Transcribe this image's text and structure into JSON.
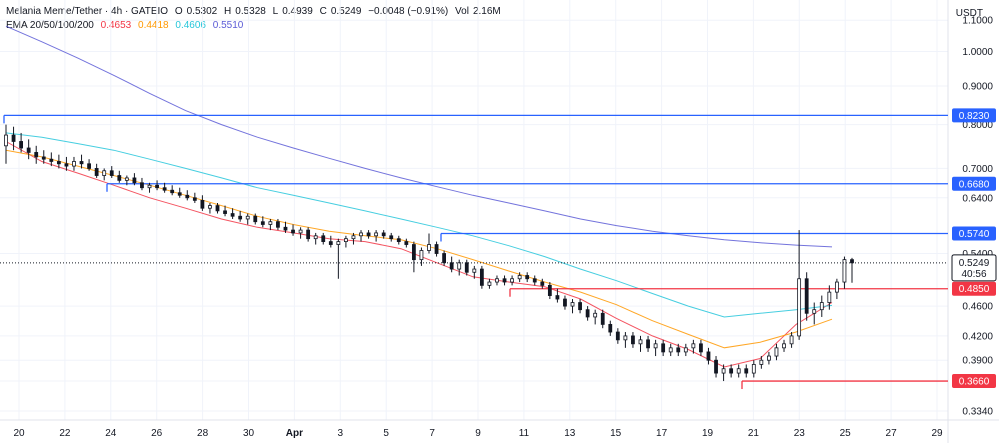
{
  "header": {
    "pair": "Melania Meme/Tether · 4h · GATEIO",
    "o_label": "O",
    "o_val": "0.5302",
    "h_label": "H",
    "h_val": "0.5328",
    "l_label": "L",
    "l_val": "0.4939",
    "c_label": "C",
    "c_val": "0.5249",
    "change": "−0.0048 (−0.91%)",
    "vol_label": "Vol",
    "vol_val": "2.16M",
    "ema_label": "EMA 20/50/100/200",
    "ema_values": [
      "0.4653",
      "0.4418",
      "0.4606",
      "0.5510"
    ],
    "currency": "USDT"
  },
  "colors": {
    "up": "#131722",
    "down": "#131722",
    "ema20": "#f23645",
    "ema50": "#ff9800",
    "ema100": "#26c6da",
    "ema200": "#5b5bd6",
    "resistance": "#2962ff",
    "support": "#f23645",
    "last_price_bg": "#ffffff"
  },
  "chart_data": {
    "type": "candlestick",
    "title": "Melania Meme/Tether · 4h · GATEIO",
    "ylabel": "USDT",
    "y_scale": "log",
    "ylim": [
      0.325,
      1.17
    ],
    "y_ticks": [
      "1.1000",
      "1.0000",
      "0.9000",
      "0.8000",
      "0.7000",
      "0.6400",
      "0.5400",
      "0.4600",
      "0.4200",
      "0.3900",
      "0.3660",
      "0.3340"
    ],
    "x_ticks": [
      "20",
      "22",
      "24",
      "26",
      "28",
      "30",
      "Apr",
      "3",
      "5",
      "7",
      "9",
      "11",
      "13",
      "15",
      "17",
      "19",
      "21",
      "23",
      "25",
      "27",
      "29"
    ],
    "grid": true,
    "levels": [
      {
        "price": 0.823,
        "label": "0.8230",
        "color": "resistance"
      },
      {
        "price": 0.668,
        "label": "0.6680",
        "color": "resistance"
      },
      {
        "price": 0.574,
        "label": "0.5740",
        "color": "resistance"
      },
      {
        "price": 0.485,
        "label": "0.4850",
        "color": "support"
      },
      {
        "price": 0.366,
        "label": "0.3660",
        "color": "support"
      }
    ],
    "last_price": {
      "value": 0.5249,
      "label": "0.5249",
      "countdown": "40:56"
    },
    "candles": [
      [
        0.75,
        0.8,
        0.71,
        0.775
      ],
      [
        0.775,
        0.795,
        0.74,
        0.76
      ],
      [
        0.76,
        0.78,
        0.735,
        0.745
      ],
      [
        0.745,
        0.765,
        0.72,
        0.735
      ],
      [
        0.735,
        0.75,
        0.71,
        0.725
      ],
      [
        0.725,
        0.74,
        0.71,
        0.72
      ],
      [
        0.72,
        0.735,
        0.705,
        0.715
      ],
      [
        0.715,
        0.73,
        0.7,
        0.71
      ],
      [
        0.71,
        0.725,
        0.695,
        0.705
      ],
      [
        0.705,
        0.725,
        0.695,
        0.715
      ],
      [
        0.715,
        0.73,
        0.7,
        0.71
      ],
      [
        0.71,
        0.72,
        0.695,
        0.7
      ],
      [
        0.7,
        0.71,
        0.68,
        0.685
      ],
      [
        0.685,
        0.7,
        0.675,
        0.695
      ],
      [
        0.695,
        0.705,
        0.68,
        0.685
      ],
      [
        0.685,
        0.695,
        0.67,
        0.675
      ],
      [
        0.675,
        0.685,
        0.665,
        0.68
      ],
      [
        0.68,
        0.69,
        0.665,
        0.67
      ],
      [
        0.67,
        0.68,
        0.655,
        0.66
      ],
      [
        0.66,
        0.67,
        0.65,
        0.665
      ],
      [
        0.665,
        0.675,
        0.655,
        0.66
      ],
      [
        0.66,
        0.67,
        0.65,
        0.655
      ],
      [
        0.655,
        0.665,
        0.645,
        0.65
      ],
      [
        0.65,
        0.66,
        0.64,
        0.645
      ],
      [
        0.645,
        0.655,
        0.635,
        0.64
      ],
      [
        0.64,
        0.65,
        0.63,
        0.635
      ],
      [
        0.635,
        0.645,
        0.615,
        0.62
      ],
      [
        0.62,
        0.63,
        0.61,
        0.625
      ],
      [
        0.625,
        0.63,
        0.61,
        0.615
      ],
      [
        0.615,
        0.625,
        0.605,
        0.61
      ],
      [
        0.61,
        0.62,
        0.6,
        0.605
      ],
      [
        0.605,
        0.615,
        0.595,
        0.6
      ],
      [
        0.6,
        0.61,
        0.59,
        0.605
      ],
      [
        0.605,
        0.61,
        0.59,
        0.595
      ],
      [
        0.595,
        0.605,
        0.585,
        0.59
      ],
      [
        0.59,
        0.6,
        0.58,
        0.595
      ],
      [
        0.595,
        0.6,
        0.58,
        0.585
      ],
      [
        0.585,
        0.595,
        0.575,
        0.58
      ],
      [
        0.58,
        0.59,
        0.57,
        0.575
      ],
      [
        0.575,
        0.585,
        0.565,
        0.58
      ],
      [
        0.58,
        0.585,
        0.56,
        0.565
      ],
      [
        0.565,
        0.575,
        0.555,
        0.57
      ],
      [
        0.57,
        0.575,
        0.555,
        0.56
      ],
      [
        0.56,
        0.57,
        0.55,
        0.555
      ],
      [
        0.555,
        0.565,
        0.5,
        0.56
      ],
      [
        0.56,
        0.57,
        0.55,
        0.565
      ],
      [
        0.565,
        0.575,
        0.555,
        0.57
      ],
      [
        0.57,
        0.58,
        0.56,
        0.575
      ],
      [
        0.575,
        0.58,
        0.565,
        0.57
      ],
      [
        0.57,
        0.58,
        0.56,
        0.575
      ],
      [
        0.575,
        0.58,
        0.565,
        0.57
      ],
      [
        0.57,
        0.575,
        0.56,
        0.565
      ],
      [
        0.565,
        0.57,
        0.555,
        0.56
      ],
      [
        0.56,
        0.565,
        0.55,
        0.555
      ],
      [
        0.555,
        0.56,
        0.51,
        0.53
      ],
      [
        0.53,
        0.55,
        0.52,
        0.545
      ],
      [
        0.545,
        0.574,
        0.54,
        0.555
      ],
      [
        0.555,
        0.56,
        0.535,
        0.54
      ],
      [
        0.54,
        0.545,
        0.52,
        0.525
      ],
      [
        0.525,
        0.535,
        0.51,
        0.515
      ],
      [
        0.515,
        0.53,
        0.505,
        0.525
      ],
      [
        0.525,
        0.53,
        0.505,
        0.51
      ],
      [
        0.51,
        0.52,
        0.5,
        0.515
      ],
      [
        0.515,
        0.52,
        0.485,
        0.49
      ],
      [
        0.49,
        0.5,
        0.485,
        0.495
      ],
      [
        0.495,
        0.505,
        0.49,
        0.5
      ],
      [
        0.5,
        0.505,
        0.49,
        0.495
      ],
      [
        0.495,
        0.505,
        0.49,
        0.5
      ],
      [
        0.5,
        0.51,
        0.495,
        0.505
      ],
      [
        0.505,
        0.51,
        0.495,
        0.5
      ],
      [
        0.5,
        0.505,
        0.49,
        0.495
      ],
      [
        0.495,
        0.5,
        0.485,
        0.49
      ],
      [
        0.49,
        0.495,
        0.47,
        0.475
      ],
      [
        0.475,
        0.485,
        0.465,
        0.47
      ],
      [
        0.47,
        0.475,
        0.455,
        0.46
      ],
      [
        0.46,
        0.47,
        0.45,
        0.465
      ],
      [
        0.465,
        0.47,
        0.45,
        0.455
      ],
      [
        0.455,
        0.46,
        0.44,
        0.445
      ],
      [
        0.445,
        0.455,
        0.435,
        0.45
      ],
      [
        0.45,
        0.455,
        0.43,
        0.435
      ],
      [
        0.435,
        0.44,
        0.42,
        0.425
      ],
      [
        0.425,
        0.43,
        0.41,
        0.415
      ],
      [
        0.415,
        0.425,
        0.405,
        0.42
      ],
      [
        0.42,
        0.425,
        0.405,
        0.41
      ],
      [
        0.41,
        0.42,
        0.4,
        0.415
      ],
      [
        0.415,
        0.42,
        0.4,
        0.405
      ],
      [
        0.405,
        0.415,
        0.395,
        0.41
      ],
      [
        0.41,
        0.415,
        0.395,
        0.4
      ],
      [
        0.4,
        0.41,
        0.395,
        0.405
      ],
      [
        0.405,
        0.41,
        0.395,
        0.4
      ],
      [
        0.4,
        0.41,
        0.395,
        0.405
      ],
      [
        0.405,
        0.415,
        0.398,
        0.41
      ],
      [
        0.41,
        0.415,
        0.395,
        0.4
      ],
      [
        0.4,
        0.405,
        0.385,
        0.39
      ],
      [
        0.39,
        0.395,
        0.37,
        0.375
      ],
      [
        0.375,
        0.385,
        0.366,
        0.38
      ],
      [
        0.38,
        0.385,
        0.37,
        0.375
      ],
      [
        0.375,
        0.385,
        0.37,
        0.38
      ],
      [
        0.38,
        0.385,
        0.37,
        0.375
      ],
      [
        0.375,
        0.39,
        0.37,
        0.385
      ],
      [
        0.385,
        0.395,
        0.38,
        0.39
      ],
      [
        0.39,
        0.4,
        0.385,
        0.395
      ],
      [
        0.395,
        0.41,
        0.39,
        0.405
      ],
      [
        0.405,
        0.415,
        0.4,
        0.41
      ],
      [
        0.41,
        0.425,
        0.405,
        0.42
      ],
      [
        0.42,
        0.58,
        0.415,
        0.5
      ],
      [
        0.5,
        0.51,
        0.44,
        0.45
      ],
      [
        0.45,
        0.465,
        0.435,
        0.455
      ],
      [
        0.455,
        0.475,
        0.445,
        0.465
      ],
      [
        0.465,
        0.49,
        0.455,
        0.48
      ],
      [
        0.48,
        0.5,
        0.47,
        0.495
      ],
      [
        0.495,
        0.535,
        0.485,
        0.53
      ],
      [
        0.53,
        0.5328,
        0.4939,
        0.5249
      ]
    ],
    "ema": [
      {
        "name": "EMA 20",
        "color": "ema20",
        "values": [
          0.76,
          0.715,
          0.69,
          0.665,
          0.64,
          0.62,
          0.6,
          0.585,
          0.575,
          0.565,
          0.56,
          0.548,
          0.525,
          0.503,
          0.495,
          0.488,
          0.47,
          0.443,
          0.42,
          0.403,
          0.382,
          0.392,
          0.435,
          0.465
        ]
      },
      {
        "name": "EMA 50",
        "color": "ema50",
        "values": [
          0.74,
          0.725,
          0.705,
          0.685,
          0.665,
          0.645,
          0.625,
          0.605,
          0.59,
          0.578,
          0.57,
          0.563,
          0.548,
          0.53,
          0.512,
          0.495,
          0.48,
          0.462,
          0.44,
          0.422,
          0.405,
          0.412,
          0.425,
          0.442
        ]
      },
      {
        "name": "EMA 100",
        "color": "ema100",
        "values": [
          0.78,
          0.77,
          0.755,
          0.74,
          0.72,
          0.7,
          0.68,
          0.66,
          0.645,
          0.63,
          0.615,
          0.6,
          0.585,
          0.57,
          0.553,
          0.535,
          0.515,
          0.497,
          0.478,
          0.46,
          0.445,
          0.45,
          0.455,
          0.461
        ]
      },
      {
        "name": "EMA 200",
        "color": "ema200",
        "values": [
          1.08,
          1.03,
          0.98,
          0.93,
          0.88,
          0.835,
          0.8,
          0.77,
          0.745,
          0.722,
          0.7,
          0.68,
          0.662,
          0.645,
          0.63,
          0.615,
          0.6,
          0.588,
          0.578,
          0.57,
          0.563,
          0.558,
          0.554,
          0.551
        ]
      }
    ]
  }
}
